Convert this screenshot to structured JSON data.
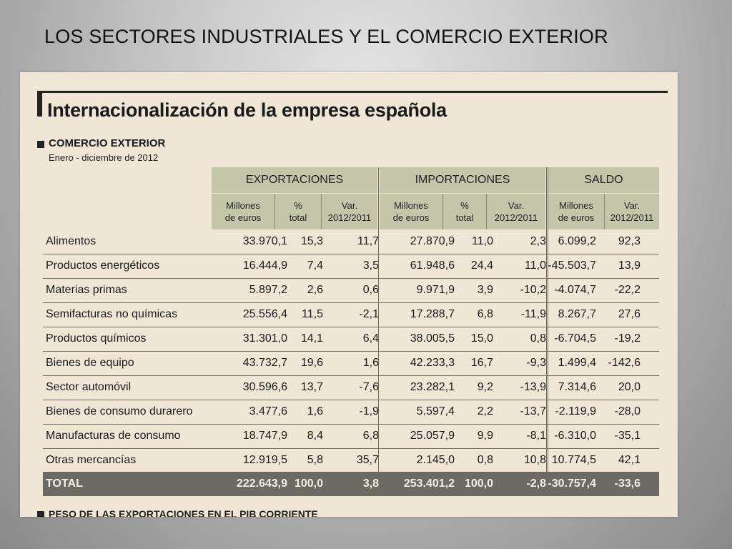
{
  "slide": {
    "title": "LOS SECTORES INDUSTRIALES Y EL COMERCIO EXTERIOR"
  },
  "clipping": {
    "title": "Internacionalización de la empresa española",
    "section_title": "COMERCIO EXTERIOR",
    "section_subtitle": "Enero - diciembre de 2012",
    "group_headers": {
      "exportaciones": "EXPORTACIONES",
      "importaciones": "IMPORTACIONES",
      "saldo": "SALDO"
    },
    "column_headers": {
      "exp_millones": "Millones\nde euros",
      "exp_pct": "%\ntotal",
      "exp_var": "Var.\n2012/2011",
      "imp_millones": "Millones\nde euros",
      "imp_pct": "%\ntotal",
      "imp_var": "Var.\n2012/2011",
      "saldo_millones": "Millones\nde euros",
      "saldo_var": "Var.\n2012/2011"
    },
    "rows": [
      {
        "label": "Alimentos",
        "exp_m": "33.970,1",
        "exp_p": "15,3",
        "exp_v": "11,7",
        "imp_m": "27.870,9",
        "imp_p": "11,0",
        "imp_v": "2,3",
        "sal_m": "6.099,2",
        "sal_v": "92,3"
      },
      {
        "label": "Productos energéticos",
        "exp_m": "16.444,9",
        "exp_p": "7,4",
        "exp_v": "3,5",
        "imp_m": "61.948,6",
        "imp_p": "24,4",
        "imp_v": "11,0",
        "sal_m": "-45.503,7",
        "sal_v": "13,9"
      },
      {
        "label": "Materias primas",
        "exp_m": "5.897,2",
        "exp_p": "2,6",
        "exp_v": "0,6",
        "imp_m": "9.971,9",
        "imp_p": "3,9",
        "imp_v": "-10,2",
        "sal_m": "-4.074,7",
        "sal_v": "-22,2"
      },
      {
        "label": "Semifacturas no químicas",
        "exp_m": "25.556,4",
        "exp_p": "11,5",
        "exp_v": "-2,1",
        "imp_m": "17.288,7",
        "imp_p": "6,8",
        "imp_v": "-11,9",
        "sal_m": "8.267,7",
        "sal_v": "27,6"
      },
      {
        "label": "Productos químicos",
        "exp_m": "31.301,0",
        "exp_p": "14,1",
        "exp_v": "6,4",
        "imp_m": "38.005,5",
        "imp_p": "15,0",
        "imp_v": "0,8",
        "sal_m": "-6.704,5",
        "sal_v": "-19,2"
      },
      {
        "label": "Bienes de equipo",
        "exp_m": "43.732,7",
        "exp_p": "19,6",
        "exp_v": "1,6",
        "imp_m": "42.233,3",
        "imp_p": "16,7",
        "imp_v": "-9,3",
        "sal_m": "1.499,4",
        "sal_v": "-142,6"
      },
      {
        "label": "Sector automóvil",
        "exp_m": "30.596,6",
        "exp_p": "13,7",
        "exp_v": "-7,6",
        "imp_m": "23.282,1",
        "imp_p": "9,2",
        "imp_v": "-13,9",
        "sal_m": "7.314,6",
        "sal_v": "20,0"
      },
      {
        "label": "Bienes de consumo durarero",
        "exp_m": "3.477,6",
        "exp_p": "1,6",
        "exp_v": "-1,9",
        "imp_m": "5.597,4",
        "imp_p": "2,2",
        "imp_v": "-13,7",
        "sal_m": "-2.119,9",
        "sal_v": "-28,0"
      },
      {
        "label": "Manufacturas de consumo",
        "exp_m": "18.747,9",
        "exp_p": "8,4",
        "exp_v": "6,8",
        "imp_m": "25.057,9",
        "imp_p": "9,9",
        "imp_v": "-8,1",
        "sal_m": "-6.310,0",
        "sal_v": "-35,1"
      },
      {
        "label": "Otras mercancías",
        "exp_m": "12.919,5",
        "exp_p": "5,8",
        "exp_v": "35,7",
        "imp_m": "2.145,0",
        "imp_p": "0,8",
        "imp_v": "10,8",
        "sal_m": "10.774,5",
        "sal_v": "42,1"
      }
    ],
    "total": {
      "label": "TOTAL",
      "exp_m": "222.643,9",
      "exp_p": "100,0",
      "exp_v": "3,8",
      "imp_m": "253.401,2",
      "imp_p": "100,0",
      "imp_v": "-2,8",
      "sal_m": "-30.757,4",
      "sal_v": "-33,6"
    },
    "bottom_cut_text": "PESO DE LAS EXPORTACIONES EN EL PIB CORRIENTE"
  },
  "colors": {
    "paper": "#efe6d6",
    "header_band": "#c3c6a8",
    "total_band": "#6b6b63"
  }
}
